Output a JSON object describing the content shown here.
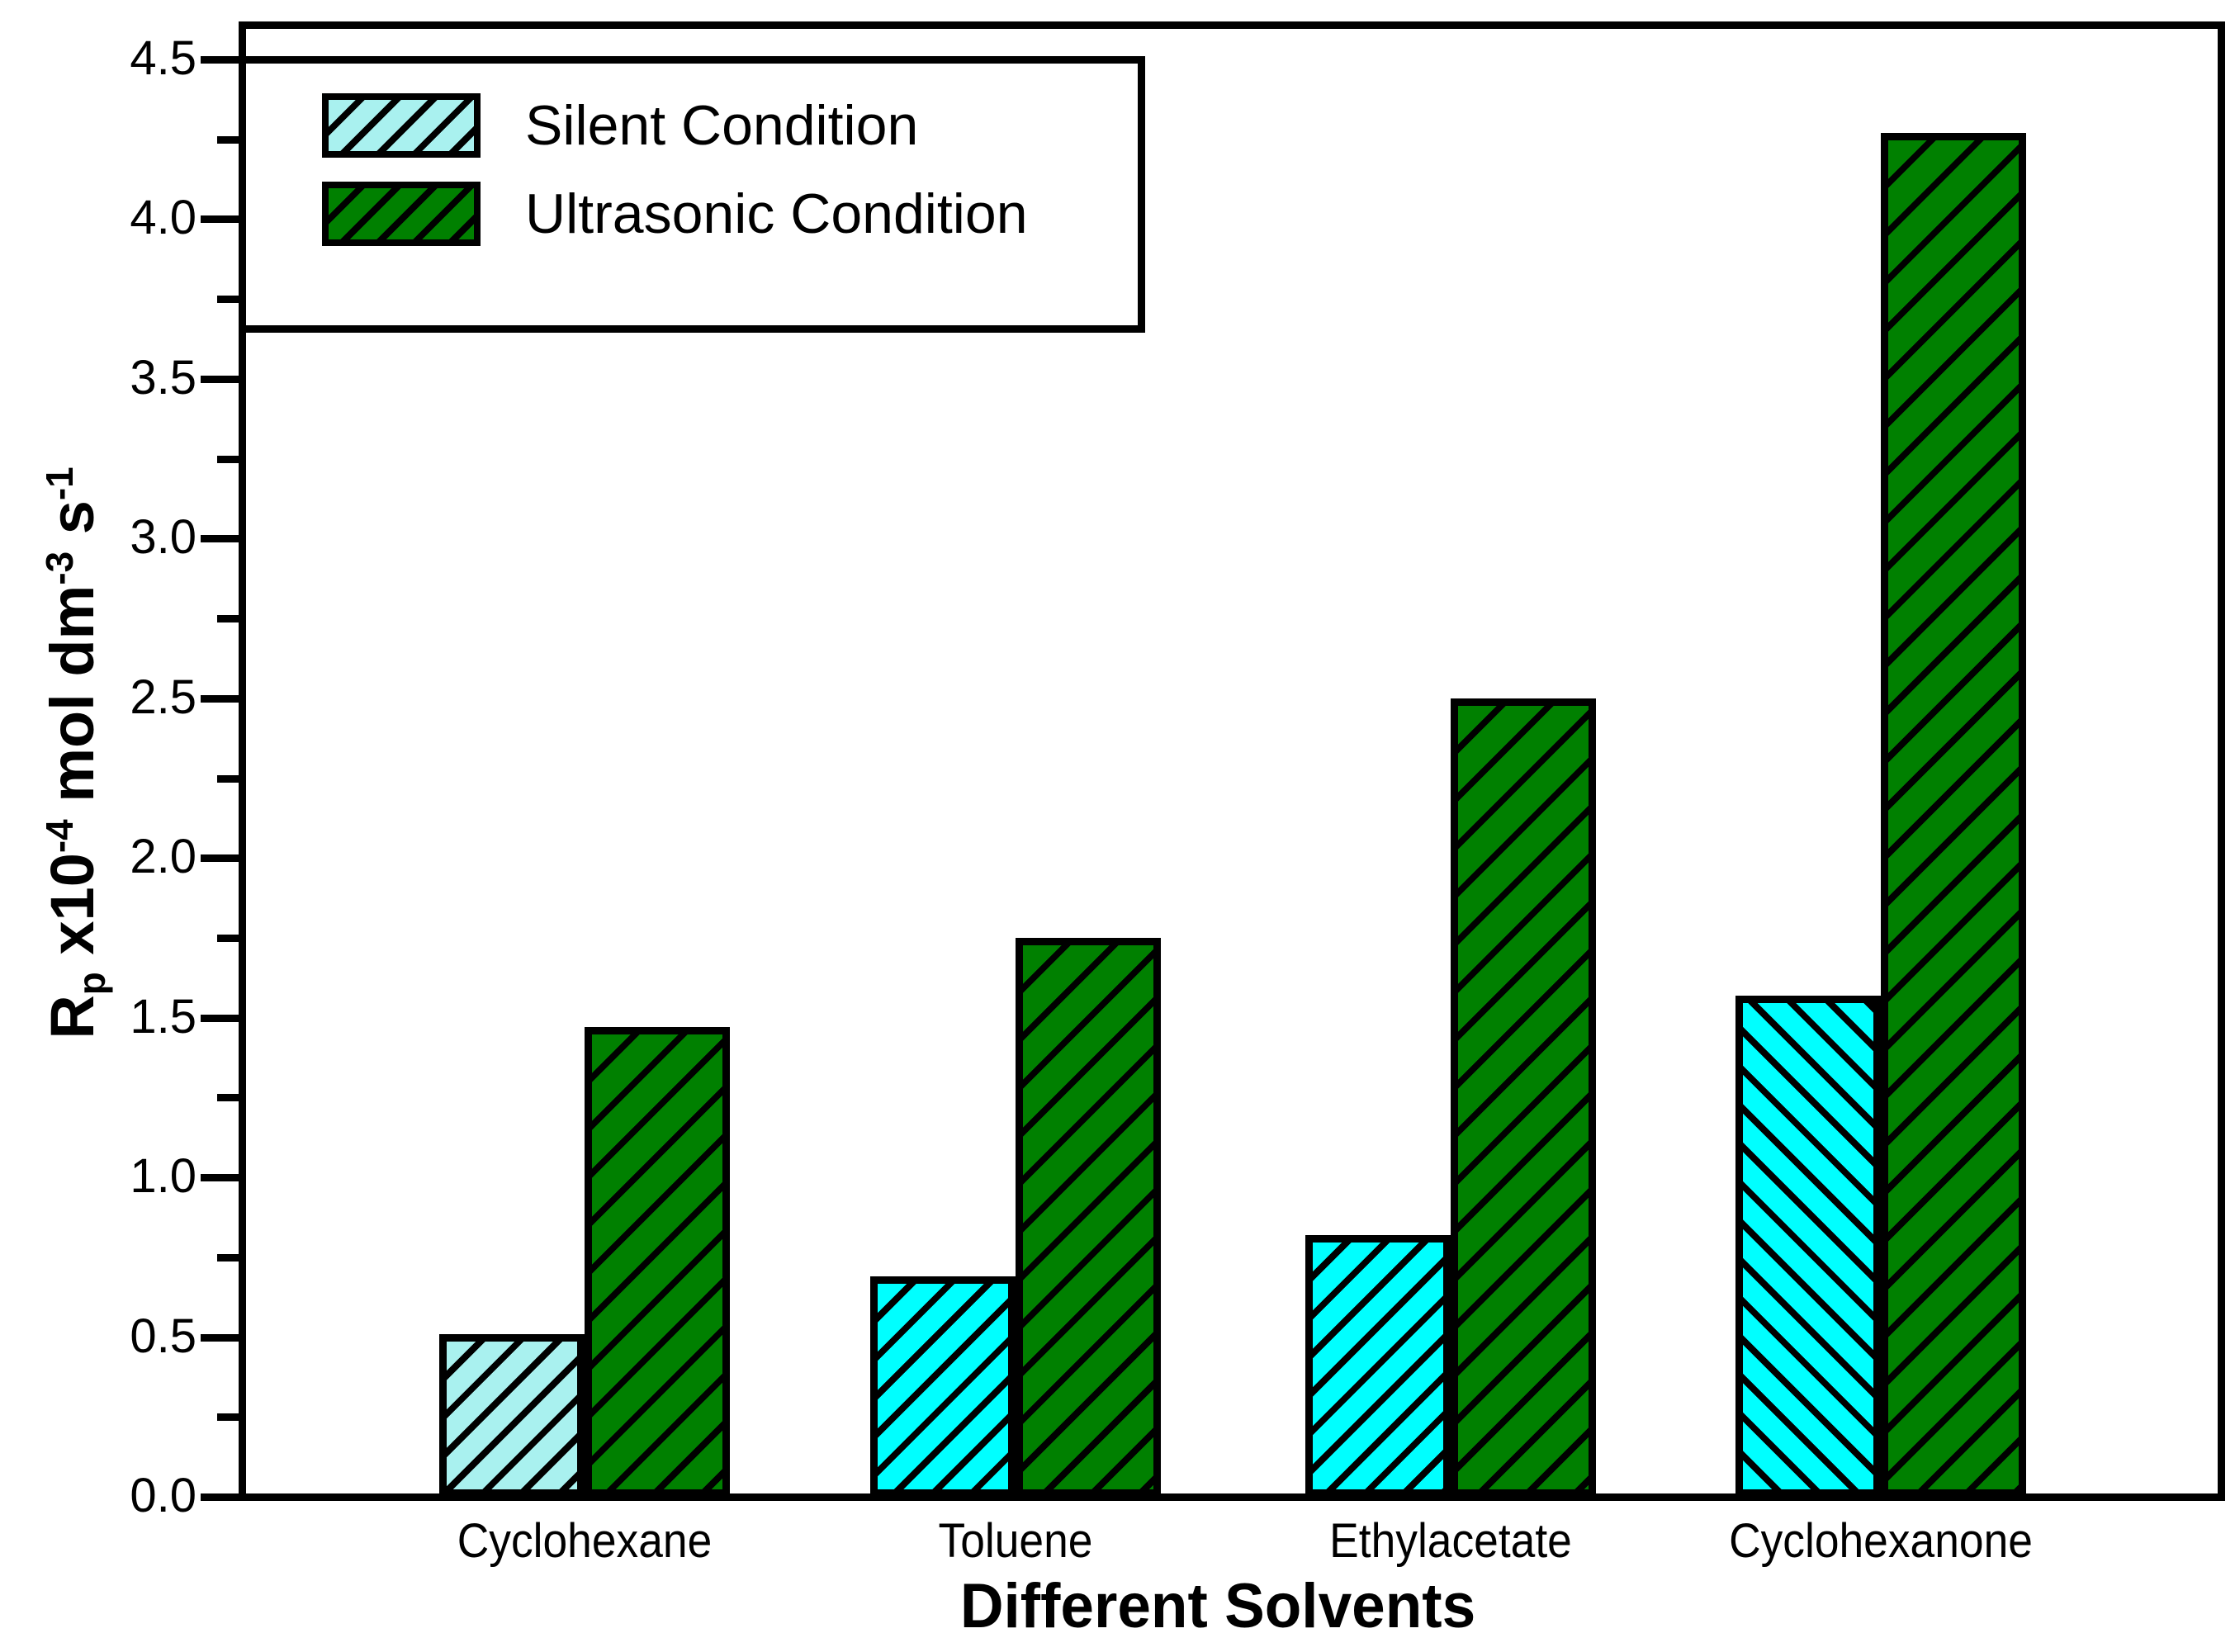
{
  "chart_data": {
    "type": "bar",
    "title": "",
    "xlabel": "Different Solvents",
    "ylabel": "Rp x10-4 mol dm-3 s-1",
    "ylabel_parts": [
      {
        "text": "R",
        "style": "normal"
      },
      {
        "text": "p",
        "style": "sub"
      },
      {
        "text": " x10",
        "style": "normal"
      },
      {
        "text": "-4",
        "style": "sup"
      },
      {
        "text": " mol dm",
        "style": "normal"
      },
      {
        "text": "-3",
        "style": "sup"
      },
      {
        "text": " s",
        "style": "normal"
      },
      {
        "text": "-1",
        "style": "sup"
      }
    ],
    "categories": [
      "Cyclohexane",
      "Toluene",
      "Ethylacetate",
      "Cyclohexanone"
    ],
    "series": [
      {
        "name": "Silent Condition",
        "values": [
          0.51,
          0.69,
          0.82,
          1.57
        ],
        "bar_colors": [
          "#a9f1ef",
          "#00ffff",
          "#00ffff",
          "#00ffff"
        ],
        "bar_hatches": [
          "/",
          "/",
          "/",
          "\\"
        ]
      },
      {
        "name": "Ultrasonic Condition",
        "values": [
          1.47,
          1.75,
          2.5,
          4.27
        ],
        "bar_colors": [
          "#008000",
          "#008000",
          "#008000",
          "#008000"
        ],
        "bar_hatches": [
          "/",
          "/",
          "/",
          "/"
        ]
      }
    ],
    "ylim": [
      0,
      4.5
    ],
    "ytick_step": 0.5,
    "yminor_step": 0.25,
    "y_tick_labels": [
      "0.0",
      "0.5",
      "1.0",
      "1.5",
      "2.0",
      "2.5",
      "3.0",
      "3.5",
      "4.0",
      "4.5"
    ],
    "grid": false,
    "legend_position": "top-left",
    "hatch_color": "#000000",
    "frame_color": "#000000",
    "background_color": "#ffffff"
  },
  "axes": {
    "x_title": "Different Solvents"
  },
  "legend": {
    "items": [
      {
        "label": "Silent Condition",
        "swatch_color": "#a9f1ef",
        "hatch": "/"
      },
      {
        "label": "Ultrasonic Condition",
        "swatch_color": "#008000",
        "hatch": "/"
      }
    ]
  }
}
